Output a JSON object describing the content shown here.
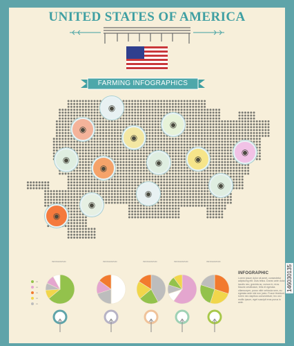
{
  "header": {
    "title": "UNITED STATES OF AMERICA",
    "ribbon_text": "FARMING INFOGRAPHICS"
  },
  "colors": {
    "frame": "#5fa4a9",
    "paper": "#f7efda",
    "teal": "#3f9fa2",
    "map_dot": "#7a7a73",
    "flag_red": "#c9373a",
    "flag_blue": "#2f3f8e",
    "flag_white": "#ffffff",
    "accent_green": "#93c24c",
    "accent_orange": "#f27a2e",
    "accent_yellow": "#f1d64b",
    "accent_pink": "#e4a6cf",
    "accent_gray": "#bdbdbd"
  },
  "animals": [
    {
      "name": "cow-icon",
      "color": "#e8f1f2"
    },
    {
      "name": "turkey-icon",
      "color": "#f4b39a"
    },
    {
      "name": "rooster-icon",
      "color": "#f3e7a3"
    },
    {
      "name": "goat-icon",
      "color": "#e7f3d9"
    },
    {
      "name": "sheep-icon",
      "color": "#dfeee1"
    },
    {
      "name": "pig-icon",
      "color": "#f5a36a"
    },
    {
      "name": "sheep-icon",
      "color": "#dfeee1"
    },
    {
      "name": "duck-icon",
      "color": "#f6e58a"
    },
    {
      "name": "pig-icon",
      "color": "#f1c2e6"
    },
    {
      "name": "horse-icon",
      "color": "#e8f1f2"
    },
    {
      "name": "rabbit-icon",
      "color": "#dfeee1"
    },
    {
      "name": "sheep-icon",
      "color": "#e6f0e3"
    },
    {
      "name": "pig-icon",
      "color": "#f57a3d"
    }
  ],
  "pies": [
    {
      "name": "pie-1",
      "values": [
        0.64,
        0.1,
        0.08,
        0.1,
        0.08
      ],
      "colors": [
        "#93c24c",
        "#f1d64b",
        "#bdbdbd",
        "#e4a6cf",
        "#ffffff"
      ]
    },
    {
      "name": "pie-2",
      "values": [
        0.5,
        0.2,
        0.15,
        0.15
      ],
      "colors": [
        "#ffffff",
        "#bdbdbd",
        "#e4a6cf",
        "#f27a2e"
      ]
    },
    {
      "name": "pie-3",
      "values": [
        0.42,
        0.22,
        0.2,
        0.16
      ],
      "colors": [
        "#bdbdbd",
        "#93c24c",
        "#f1d64b",
        "#f27a2e"
      ]
    },
    {
      "name": "pie-4",
      "values": [
        0.6,
        0.1,
        0.1,
        0.1,
        0.1
      ],
      "colors": [
        "#e4a6cf",
        "#ffffff",
        "#bdbdbd",
        "#93c24c",
        "#f1d64b"
      ]
    },
    {
      "name": "pie-5",
      "values": [
        0.3,
        0.25,
        0.25,
        0.2
      ],
      "colors": [
        "#f27a2e",
        "#f1d64b",
        "#93c24c",
        "#bdbdbd"
      ]
    }
  ],
  "pie_titles": [
    "INFOGRAPHIC",
    "INFOGRAPHIC",
    "INFOGRAPHIC",
    "INFOGRAPHIC",
    "INFOGRAPHIC"
  ],
  "legend": [
    {
      "color": "#93c24c",
      "label": "xx"
    },
    {
      "color": "#e4a6cf",
      "label": "xx"
    },
    {
      "color": "#f27a2e",
      "label": "xx"
    },
    {
      "color": "#f1d64b",
      "label": "xx"
    },
    {
      "color": "#bdbdbd",
      "label": "xx"
    }
  ],
  "info": {
    "title": "INFOGRAPHIC",
    "text": "Lorem ipsum dolor sit amet, consectetur adipiscing elit. Duis tellus. Donec ante dolor, iaculis nec, gravida ac, cursus in, eros. Mauris vestibulum, felis et egestas ullamcorper, purus nibh vehicula sem, eu egestas ante nisl non justo. Fusce tincidunt, lorem nec dapibus consectetuer, leo orci mollis ipsum, eget suscipit eros purus in ante."
  },
  "rings": [
    {
      "color": "#5fa4a9"
    },
    {
      "color": "#b7b3c5"
    },
    {
      "color": "#f0c39a"
    },
    {
      "color": "#9ed1b4"
    },
    {
      "color": "#a8c84a"
    }
  ],
  "watermark": "146030135"
}
